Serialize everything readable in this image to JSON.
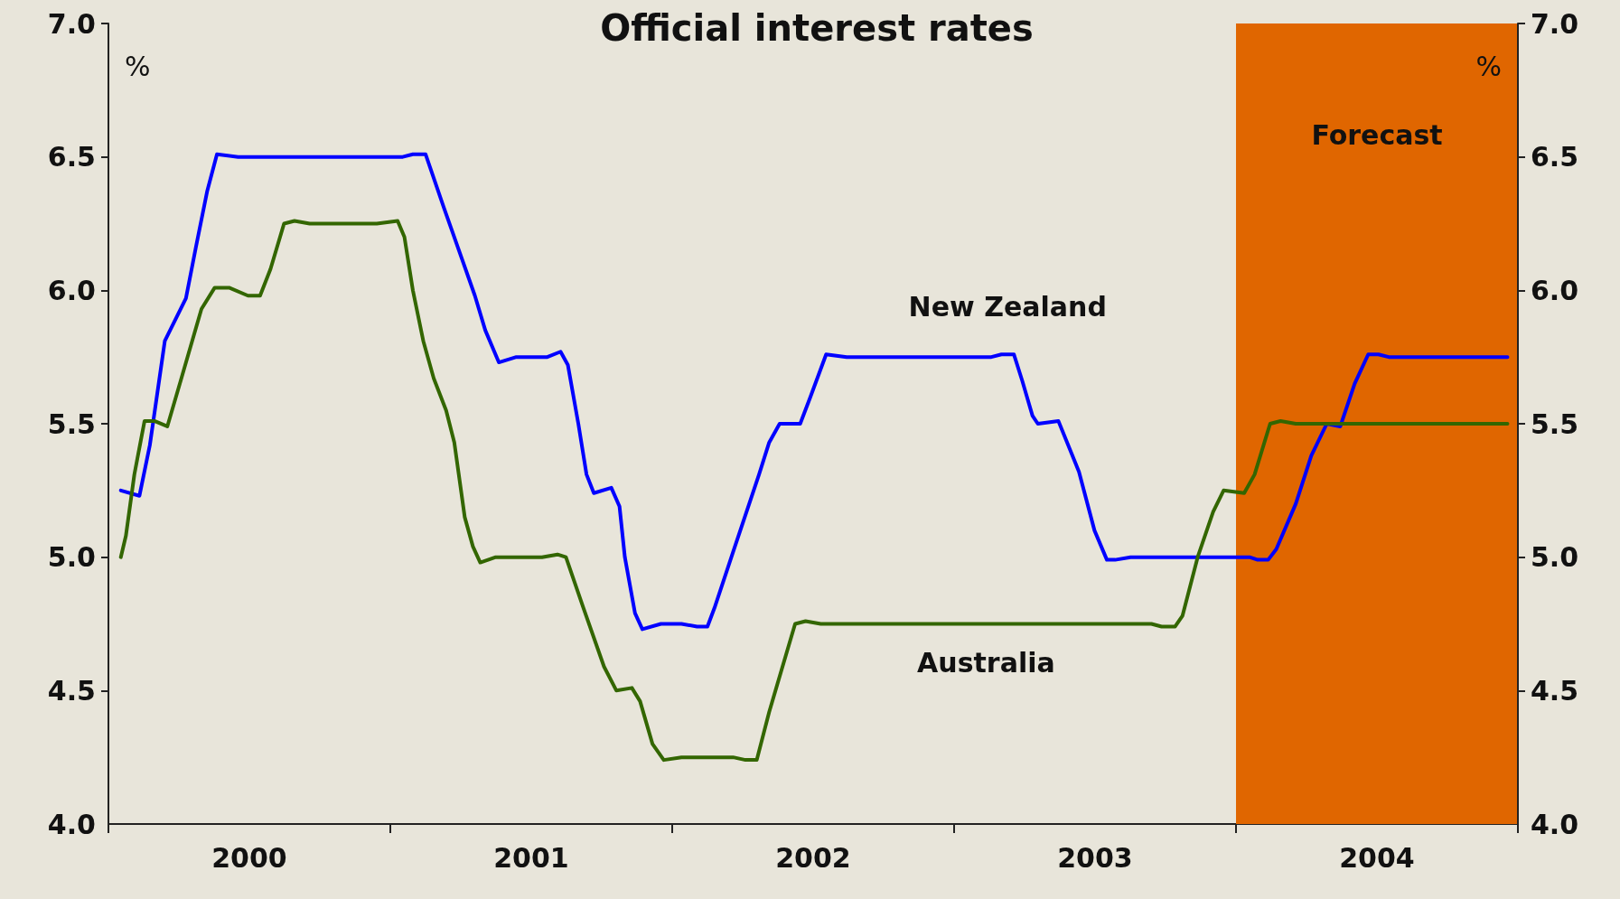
{
  "chart_data": {
    "type": "line",
    "title": "Official interest rates",
    "ylabel": "%",
    "y2label": "%",
    "xlim": [
      2000,
      2005
    ],
    "xticks": [
      {
        "value": 2000,
        "label": null
      },
      {
        "value": 2000.5,
        "label": "2000"
      },
      {
        "value": 2001,
        "label": null
      },
      {
        "value": 2001.5,
        "label": "2001"
      },
      {
        "value": 2002,
        "label": null
      },
      {
        "value": 2002.5,
        "label": "2002"
      },
      {
        "value": 2003,
        "label": null
      },
      {
        "value": 2003.5,
        "label": "2003"
      },
      {
        "value": 2004,
        "label": null
      },
      {
        "value": 2004.5,
        "label": "2004"
      },
      {
        "value": 2005,
        "label": null
      }
    ],
    "ylim": [
      4.0,
      7.0
    ],
    "yticks": [
      {
        "value": 4.0,
        "label": "4.0"
      },
      {
        "value": 4.5,
        "label": "4.5"
      },
      {
        "value": 5.0,
        "label": "5.0"
      },
      {
        "value": 5.5,
        "label": "5.5"
      },
      {
        "value": 6.0,
        "label": "6.0"
      },
      {
        "value": 6.5,
        "label": "6.5"
      },
      {
        "value": 7.0,
        "label": "7.0"
      }
    ],
    "y2lim": [
      4.0,
      7.0
    ],
    "y2ticks": [
      {
        "value": 4.0,
        "label": "4.0"
      },
      {
        "value": 4.5,
        "label": "4.5"
      },
      {
        "value": 5.0,
        "label": "5.0"
      },
      {
        "value": 5.5,
        "label": "5.5"
      },
      {
        "value": 6.0,
        "label": "6.0"
      },
      {
        "value": 6.5,
        "label": "6.5"
      },
      {
        "value": 7.0,
        "label": "7.0"
      }
    ],
    "grid": false,
    "legend": false,
    "marker": "none",
    "line_style": "solid",
    "bands": [
      {
        "axis": "x",
        "from": 2004,
        "to": 2005,
        "label": "Forecast",
        "color": "#e06600"
      }
    ],
    "series": [
      {
        "name": "New Zealand",
        "color": "#0000ff",
        "x": [
          2000.044,
          2000.11,
          2000.147,
          2000.2,
          2000.275,
          2000.31,
          2000.35,
          2000.385,
          2000.46,
          2001.044,
          2001.08,
          2001.125,
          2001.19,
          2001.3,
          2001.337,
          2001.385,
          2001.447,
          2001.557,
          2001.604,
          2001.63,
          2001.667,
          2001.696,
          2001.722,
          2001.784,
          2001.813,
          2001.832,
          2001.868,
          2001.894,
          2001.96,
          2002.033,
          2002.088,
          2002.125,
          2002.15,
          2002.216,
          2002.308,
          2002.344,
          2002.381,
          2002.454,
          2002.49,
          2002.546,
          2002.619,
          2003.132,
          2003.168,
          2003.212,
          2003.242,
          2003.278,
          2003.297,
          2003.37,
          2003.443,
          2003.498,
          2003.542,
          2003.571,
          2003.626,
          2004.048,
          2004.077,
          2004.114,
          2004.143,
          2004.212,
          2004.267,
          2004.322,
          2004.37,
          2004.421,
          2004.469,
          2004.505,
          2004.542,
          2004.963
        ],
        "values": [
          5.25,
          5.23,
          5.42,
          5.81,
          5.97,
          6.16,
          6.37,
          6.51,
          6.5,
          6.5,
          6.51,
          6.51,
          6.31,
          5.98,
          5.85,
          5.73,
          5.75,
          5.75,
          5.77,
          5.72,
          5.5,
          5.31,
          5.24,
          5.26,
          5.19,
          5.0,
          4.79,
          4.73,
          4.75,
          4.75,
          4.74,
          4.74,
          4.81,
          5.02,
          5.31,
          5.43,
          5.5,
          5.5,
          5.6,
          5.76,
          5.75,
          5.75,
          5.76,
          5.76,
          5.66,
          5.53,
          5.5,
          5.51,
          5.32,
          5.1,
          4.99,
          4.99,
          5.0,
          5.0,
          4.99,
          4.99,
          5.03,
          5.2,
          5.38,
          5.5,
          5.49,
          5.65,
          5.76,
          5.76,
          5.75,
          5.75
        ]
      },
      {
        "name": "Australia",
        "color": "#336600",
        "x": [
          2000.044,
          2000.062,
          2000.092,
          2000.128,
          2000.165,
          2000.209,
          2000.256,
          2000.33,
          2000.377,
          2000.428,
          2000.495,
          2000.538,
          2000.575,
          2000.623,
          2000.66,
          2000.714,
          2000.952,
          2001.026,
          2001.05,
          2001.08,
          2001.117,
          2001.154,
          2001.198,
          2001.227,
          2001.264,
          2001.293,
          2001.319,
          2001.374,
          2001.538,
          2001.593,
          2001.623,
          2001.685,
          2001.758,
          2001.802,
          2001.857,
          2001.886,
          2001.93,
          2001.97,
          2002.033,
          2002.216,
          2002.26,
          2002.3,
          2002.344,
          2002.436,
          2002.473,
          2002.527,
          2003.7,
          2003.736,
          2003.784,
          2003.81,
          2003.864,
          2003.919,
          2003.956,
          2004.029,
          2004.066,
          2004.121,
          2004.158,
          2004.212,
          2004.963
        ],
        "values": [
          5.0,
          5.08,
          5.31,
          5.51,
          5.51,
          5.49,
          5.66,
          5.93,
          6.01,
          6.01,
          5.98,
          5.98,
          6.08,
          6.25,
          6.26,
          6.25,
          6.25,
          6.26,
          6.2,
          6.0,
          5.81,
          5.67,
          5.55,
          5.43,
          5.15,
          5.04,
          4.98,
          5.0,
          5.0,
          5.01,
          5.0,
          4.81,
          4.59,
          4.5,
          4.51,
          4.46,
          4.3,
          4.24,
          4.25,
          4.25,
          4.24,
          4.24,
          4.42,
          4.75,
          4.76,
          4.75,
          4.75,
          4.74,
          4.74,
          4.78,
          5.0,
          5.17,
          5.25,
          5.24,
          5.31,
          5.5,
          5.51,
          5.5,
          5.5
        ]
      }
    ]
  }
}
